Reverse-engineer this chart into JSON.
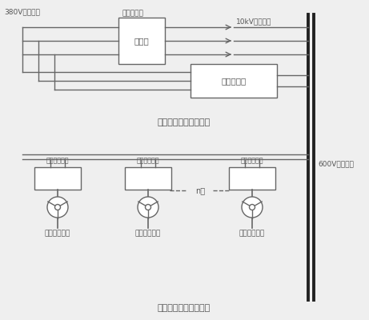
{
  "bg_color": "#efefef",
  "line_color": "#666666",
  "box_color": "#ffffff",
  "box_edge": "#666666",
  "text_color": "#555555",
  "title": "风力发电节能减排系统",
  "label_380": "380V输电线路",
  "label_10kv": "10kV输电线路",
  "label_bianya": "变压器",
  "label_user_bianya": "用户变压器",
  "label_bingwang": "并网逆变器",
  "label_600v": "600V直流母线",
  "label_xiaoxing": "小型直流风力发电机群",
  "label_sanxiang1": "三相整流管桥",
  "label_sanxiang2": "三相整流管桥",
  "label_sanxiang3": "三相整流管桥",
  "label_fengji1": "风力发电机组",
  "label_fengji2": "风力发电机组",
  "label_fengji3": "风力发电机组",
  "label_n": "n台"
}
